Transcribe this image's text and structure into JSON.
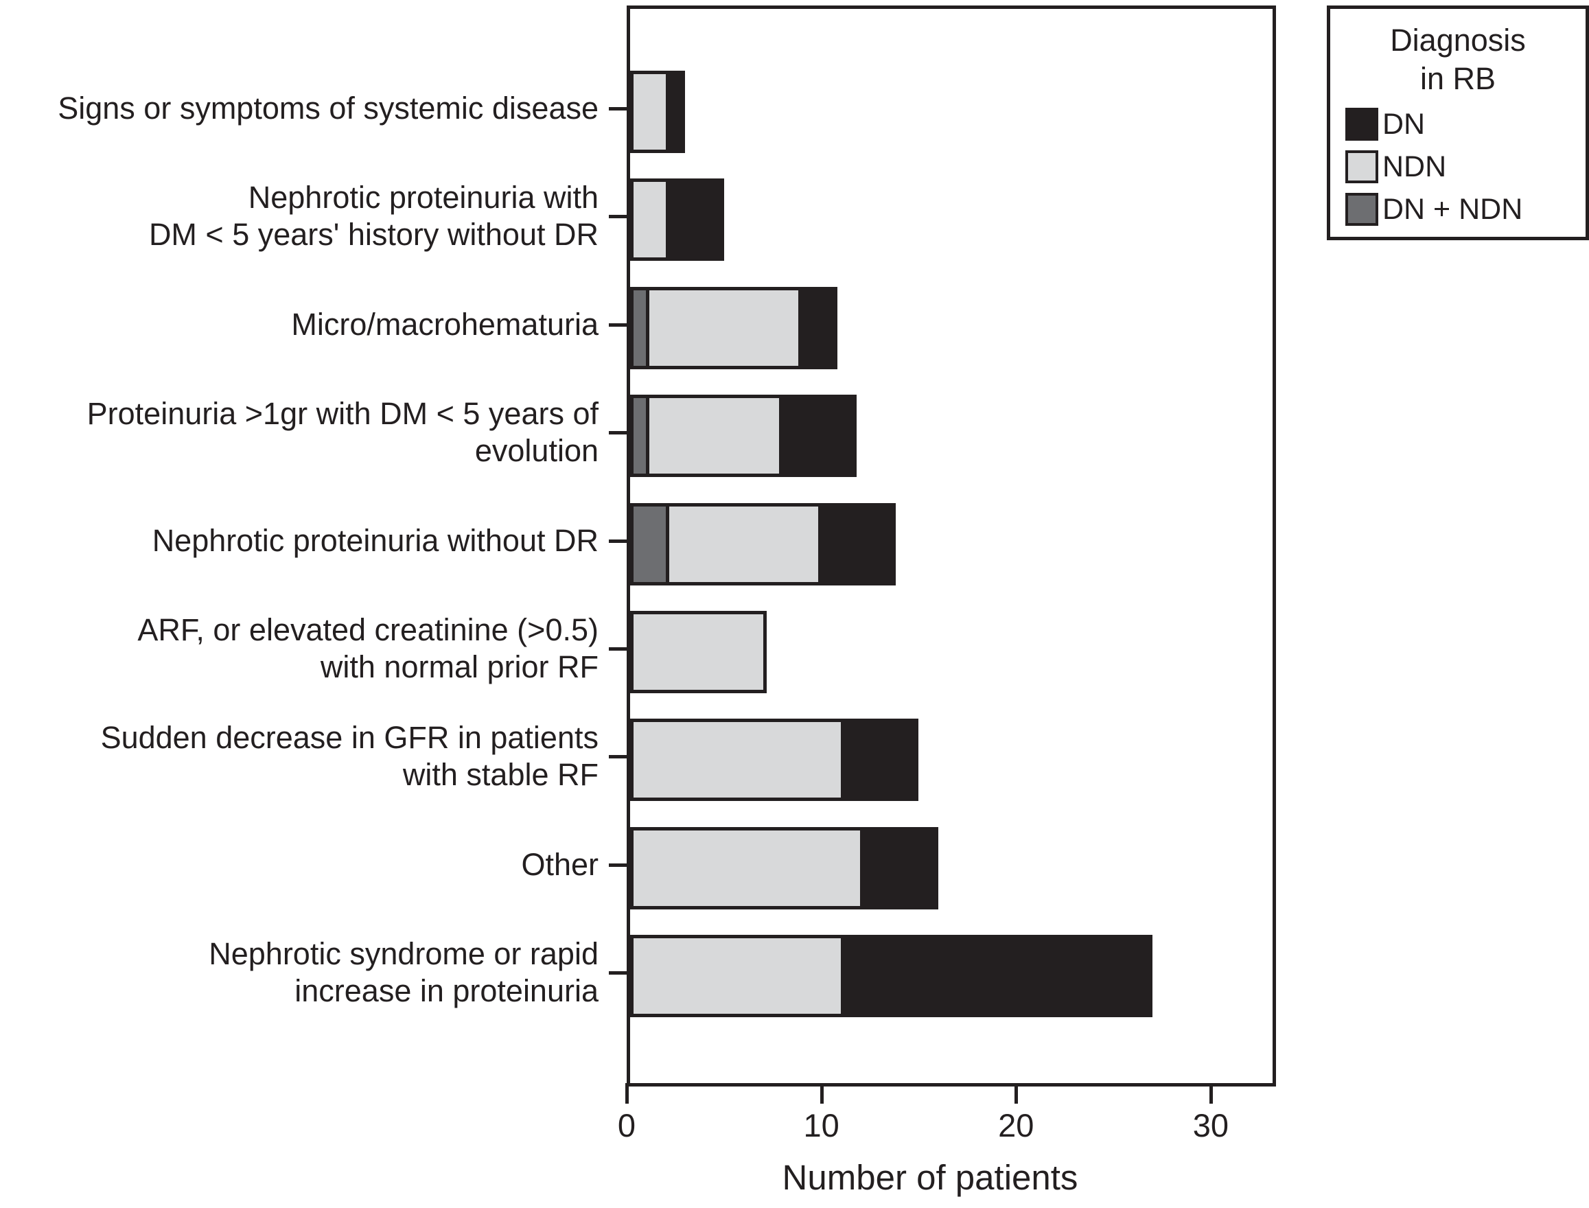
{
  "chart_data": {
    "type": "bar",
    "orientation": "horizontal",
    "stacked": true,
    "xlabel": "Number of patients",
    "xlim": [
      0,
      33
    ],
    "xticks": [
      0,
      10,
      20,
      30
    ],
    "grid": false,
    "categories": [
      [
        "Signs or symptoms of systemic disease"
      ],
      [
        "Nephrotic proteinuria with",
        "DM < 5 years' history without DR"
      ],
      [
        "Micro/macrohematuria"
      ],
      [
        "Proteinuria >1gr with DM < 5 years of",
        "evolution"
      ],
      [
        "Nephrotic proteinuria without DR"
      ],
      [
        "ARF, or elevated creatinine (>0.5)",
        "with normal prior RF"
      ],
      [
        "Sudden decrease in GFR in patients",
        "with stable RF"
      ],
      [
        "Other"
      ],
      [
        "Nephrotic syndrome or rapid",
        "increase in proteinuria"
      ]
    ],
    "series": [
      {
        "name": "DN + NDN",
        "color": "#6d6e71",
        "values": [
          0,
          0,
          1,
          1,
          2,
          0,
          0,
          0,
          0
        ]
      },
      {
        "name": "NDN",
        "color": "#d8d9da",
        "values": [
          2,
          2,
          8,
          7,
          8,
          7,
          11,
          12,
          11
        ]
      },
      {
        "name": "DN",
        "color": "#231f20",
        "values": [
          1,
          3,
          2,
          4,
          4,
          0,
          4,
          4,
          16
        ]
      }
    ],
    "totals": [
      3,
      5,
      11,
      12,
      14,
      7,
      15,
      16,
      27
    ],
    "legend": {
      "title_lines": [
        "Diagnosis",
        "in RB"
      ],
      "position": "top-right",
      "entries": [
        {
          "label": "DN",
          "color": "#231f20"
        },
        {
          "label": "NDN",
          "color": "#d8d9da"
        },
        {
          "label": "DN + NDN",
          "color": "#6d6e71"
        }
      ]
    },
    "colors": {
      "axis": "#231f20",
      "background": "#ffffff"
    }
  }
}
